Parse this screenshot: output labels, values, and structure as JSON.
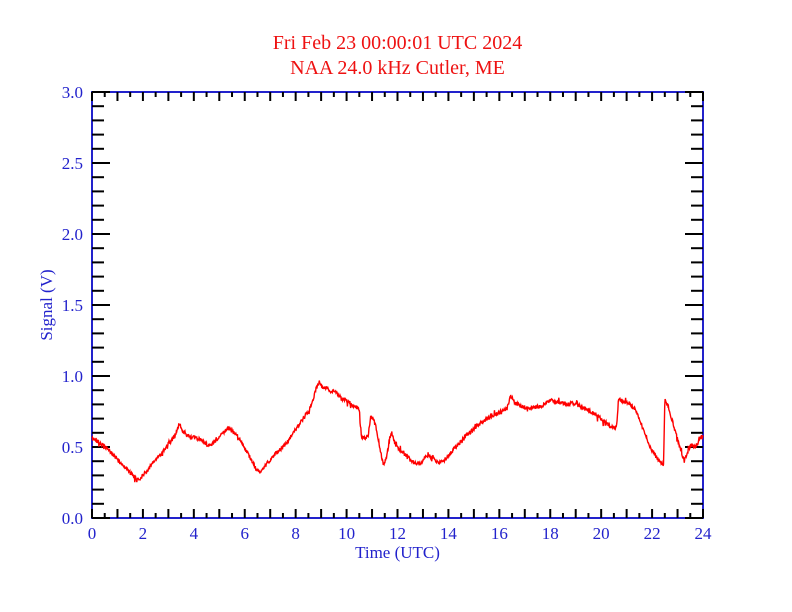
{
  "header": {
    "line1": "Fri Feb 23 00:00:01 UTC 2024",
    "line2": "NAA 24.0 kHz Cutler, ME"
  },
  "chart_data": {
    "type": "line",
    "title": "Fri Feb 23 00:00:01 UTC 2024 / NAA 24.0 kHz Cutler, ME",
    "xlabel": "Time (UTC)",
    "ylabel": "Signal (V)",
    "xlim": [
      0,
      24
    ],
    "ylim": [
      0.0,
      3.0
    ],
    "x_tick_labels": [
      "0",
      "2",
      "4",
      "6",
      "8",
      "10",
      "12",
      "14",
      "16",
      "18",
      "20",
      "22",
      "24"
    ],
    "x_label_step_hours": 2,
    "x_long_tick_step_hours": 1,
    "x_minor_tick_step_hours": 0.5,
    "y_tick_labels": [
      "0.0",
      "0.5",
      "1.0",
      "1.5",
      "2.0",
      "2.5",
      "3.0"
    ],
    "y_label_step_volts": 0.5,
    "y_minor_tick_step_volts": 0.1,
    "grid": false,
    "legend": "none",
    "series": [
      {
        "name": "NAA 24.0 kHz signal strength",
        "units": "V",
        "noise_amplitude": 0.013,
        "anchors": [
          [
            0.0,
            0.56
          ],
          [
            0.15,
            0.55
          ],
          [
            0.3,
            0.53
          ],
          [
            0.5,
            0.5
          ],
          [
            0.7,
            0.47
          ],
          [
            0.9,
            0.43
          ],
          [
            1.1,
            0.39
          ],
          [
            1.3,
            0.36
          ],
          [
            1.5,
            0.32
          ],
          [
            1.7,
            0.28
          ],
          [
            1.85,
            0.27
          ],
          [
            2.0,
            0.3
          ],
          [
            2.2,
            0.34
          ],
          [
            2.4,
            0.39
          ],
          [
            2.6,
            0.43
          ],
          [
            2.8,
            0.47
          ],
          [
            3.0,
            0.52
          ],
          [
            3.15,
            0.55
          ],
          [
            3.3,
            0.6
          ],
          [
            3.42,
            0.66
          ],
          [
            3.55,
            0.62
          ],
          [
            3.7,
            0.59
          ],
          [
            3.9,
            0.57
          ],
          [
            4.1,
            0.56
          ],
          [
            4.3,
            0.55
          ],
          [
            4.5,
            0.52
          ],
          [
            4.65,
            0.51
          ],
          [
            4.8,
            0.53
          ],
          [
            5.0,
            0.57
          ],
          [
            5.2,
            0.61
          ],
          [
            5.35,
            0.63
          ],
          [
            5.5,
            0.61
          ],
          [
            5.7,
            0.58
          ],
          [
            5.9,
            0.53
          ],
          [
            6.1,
            0.46
          ],
          [
            6.3,
            0.4
          ],
          [
            6.45,
            0.34
          ],
          [
            6.6,
            0.32
          ],
          [
            6.75,
            0.35
          ],
          [
            6.9,
            0.39
          ],
          [
            7.1,
            0.43
          ],
          [
            7.3,
            0.47
          ],
          [
            7.5,
            0.5
          ],
          [
            7.7,
            0.54
          ],
          [
            7.9,
            0.6
          ],
          [
            8.1,
            0.65
          ],
          [
            8.3,
            0.7
          ],
          [
            8.5,
            0.75
          ],
          [
            8.65,
            0.81
          ],
          [
            8.8,
            0.91
          ],
          [
            8.92,
            0.96
          ],
          [
            9.05,
            0.92
          ],
          [
            9.2,
            0.92
          ],
          [
            9.35,
            0.89
          ],
          [
            9.5,
            0.9
          ],
          [
            9.65,
            0.87
          ],
          [
            9.8,
            0.84
          ],
          [
            10.0,
            0.83
          ],
          [
            10.2,
            0.8
          ],
          [
            10.38,
            0.78
          ],
          [
            10.5,
            0.76
          ],
          [
            10.58,
            0.57
          ],
          [
            10.72,
            0.56
          ],
          [
            10.85,
            0.58
          ],
          [
            10.95,
            0.72
          ],
          [
            11.05,
            0.7
          ],
          [
            11.18,
            0.62
          ],
          [
            11.3,
            0.5
          ],
          [
            11.45,
            0.37
          ],
          [
            11.58,
            0.44
          ],
          [
            11.7,
            0.57
          ],
          [
            11.78,
            0.6
          ],
          [
            11.9,
            0.52
          ],
          [
            12.05,
            0.49
          ],
          [
            12.2,
            0.46
          ],
          [
            12.4,
            0.43
          ],
          [
            12.6,
            0.4
          ],
          [
            12.75,
            0.38
          ],
          [
            12.9,
            0.38
          ],
          [
            13.05,
            0.42
          ],
          [
            13.2,
            0.44
          ],
          [
            13.35,
            0.43
          ],
          [
            13.5,
            0.4
          ],
          [
            13.65,
            0.39
          ],
          [
            13.8,
            0.4
          ],
          [
            14.0,
            0.44
          ],
          [
            14.2,
            0.48
          ],
          [
            14.45,
            0.53
          ],
          [
            14.7,
            0.58
          ],
          [
            14.95,
            0.62
          ],
          [
            15.2,
            0.66
          ],
          [
            15.45,
            0.69
          ],
          [
            15.7,
            0.72
          ],
          [
            15.95,
            0.74
          ],
          [
            16.15,
            0.76
          ],
          [
            16.3,
            0.77
          ],
          [
            16.45,
            0.86
          ],
          [
            16.6,
            0.81
          ],
          [
            16.8,
            0.79
          ],
          [
            17.0,
            0.78
          ],
          [
            17.2,
            0.77
          ],
          [
            17.45,
            0.78
          ],
          [
            17.7,
            0.79
          ],
          [
            17.9,
            0.82
          ],
          [
            18.05,
            0.83
          ],
          [
            18.25,
            0.82
          ],
          [
            18.45,
            0.81
          ],
          [
            18.65,
            0.8
          ],
          [
            18.85,
            0.81
          ],
          [
            19.05,
            0.8
          ],
          [
            19.25,
            0.78
          ],
          [
            19.5,
            0.76
          ],
          [
            19.75,
            0.73
          ],
          [
            20.0,
            0.7
          ],
          [
            20.2,
            0.67
          ],
          [
            20.4,
            0.64
          ],
          [
            20.55,
            0.63
          ],
          [
            20.62,
            0.66
          ],
          [
            20.68,
            0.84
          ],
          [
            20.85,
            0.82
          ],
          [
            21.0,
            0.82
          ],
          [
            21.15,
            0.8
          ],
          [
            21.3,
            0.77
          ],
          [
            21.45,
            0.72
          ],
          [
            21.6,
            0.65
          ],
          [
            21.75,
            0.58
          ],
          [
            21.9,
            0.51
          ],
          [
            22.05,
            0.46
          ],
          [
            22.2,
            0.42
          ],
          [
            22.35,
            0.39
          ],
          [
            22.45,
            0.37
          ],
          [
            22.5,
            0.83
          ],
          [
            22.62,
            0.79
          ],
          [
            22.75,
            0.71
          ],
          [
            22.9,
            0.62
          ],
          [
            23.05,
            0.52
          ],
          [
            23.2,
            0.43
          ],
          [
            23.3,
            0.42
          ],
          [
            23.45,
            0.49
          ],
          [
            23.55,
            0.52
          ],
          [
            23.65,
            0.5
          ],
          [
            23.78,
            0.52
          ],
          [
            23.88,
            0.55
          ],
          [
            24.0,
            0.58
          ]
        ]
      }
    ]
  },
  "colors": {
    "title_text": "#ee1111",
    "series_line": "#ff0000",
    "axis_box": "#2222cc",
    "axis_text": "#2222cc",
    "tick_marks": "#000000",
    "background": "#ffffff"
  }
}
